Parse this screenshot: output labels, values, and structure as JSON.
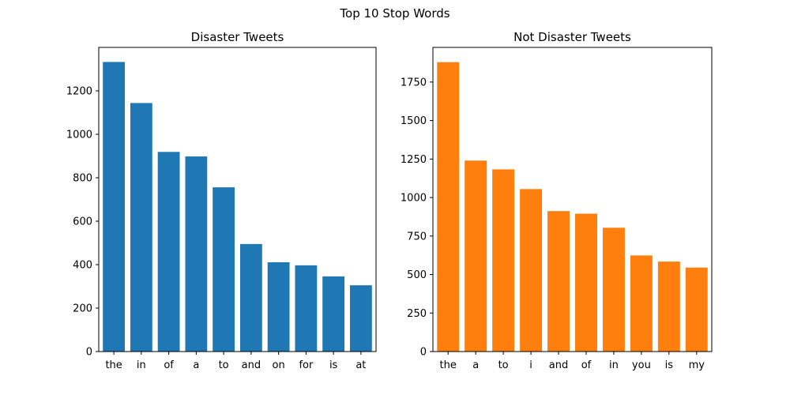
{
  "figure": {
    "suptitle": "Top 10 Stop Words"
  },
  "chart_data": [
    {
      "type": "bar",
      "title": "Disaster Tweets",
      "xlabel": "",
      "ylabel": "",
      "categories": [
        "the",
        "in",
        "of",
        "a",
        "to",
        "and",
        "on",
        "for",
        "is",
        "at"
      ],
      "values": [
        1333,
        1144,
        919,
        898,
        756,
        495,
        411,
        397,
        346,
        305
      ],
      "ylim": [
        0,
        1400
      ],
      "yticks": [
        0,
        200,
        400,
        600,
        800,
        1000,
        1200
      ],
      "color": "#1f77b4",
      "grid": false
    },
    {
      "type": "bar",
      "title": "Not Disaster Tweets",
      "xlabel": "",
      "ylabel": "",
      "categories": [
        "the",
        "a",
        "to",
        "i",
        "and",
        "of",
        "in",
        "you",
        "is",
        "my"
      ],
      "values": [
        1879,
        1240,
        1183,
        1055,
        912,
        895,
        804,
        624,
        584,
        545
      ],
      "ylim": [
        0,
        1975
      ],
      "yticks": [
        0,
        250,
        500,
        750,
        1000,
        1250,
        1500,
        1750
      ],
      "color": "#ff7f0e",
      "grid": false
    }
  ]
}
